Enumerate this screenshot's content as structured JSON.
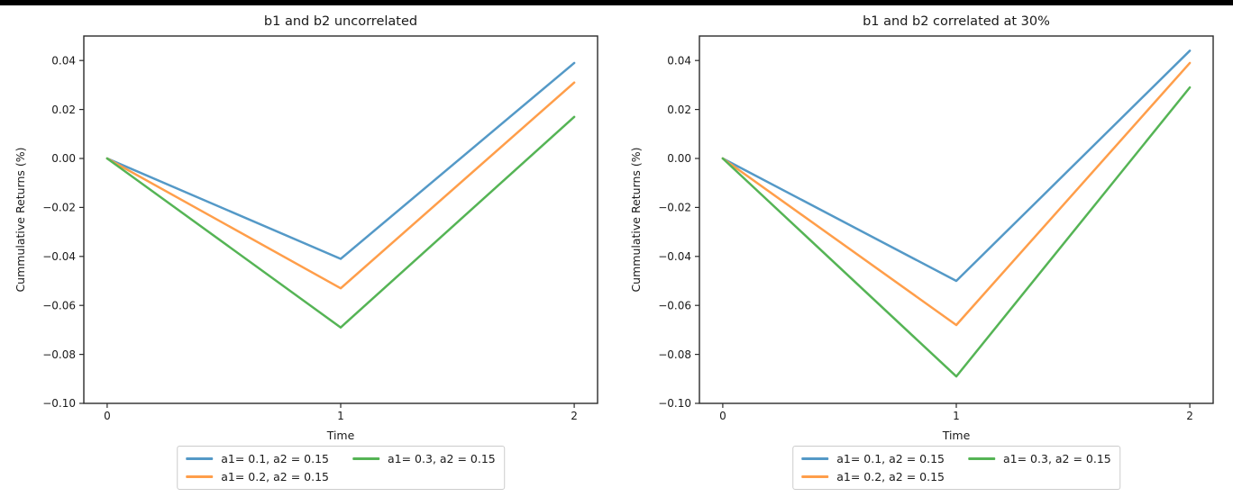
{
  "window": {
    "background": "#ffffff",
    "top_edge_color": "#000000"
  },
  "style": {
    "axis_color": "#2b2b2b",
    "text_color": "#1a1a1a",
    "legend_border_color": "#cccccc"
  },
  "chart_data": [
    {
      "type": "line",
      "title": "b1 and b2 uncorrelated",
      "xlabel": "Time",
      "ylabel": "Cummulative Returns (%)",
      "xlim": [
        -0.1,
        2.1
      ],
      "ylim": [
        -0.1,
        0.05
      ],
      "grid": false,
      "legend_position": "below",
      "x": [
        0,
        1,
        2
      ],
      "xticks": [
        {
          "v": 0,
          "label": "0"
        },
        {
          "v": 1,
          "label": "1"
        },
        {
          "v": 2,
          "label": "2"
        }
      ],
      "yticks": [
        {
          "v": 0.04,
          "label": "0.04"
        },
        {
          "v": 0.02,
          "label": "0.02"
        },
        {
          "v": 0.0,
          "label": "0.00"
        },
        {
          "v": -0.02,
          "label": "−0.02"
        },
        {
          "v": -0.04,
          "label": "−0.04"
        },
        {
          "v": -0.06,
          "label": "−0.06"
        },
        {
          "v": -0.08,
          "label": "−0.08"
        },
        {
          "v": -0.1,
          "label": "−0.10"
        }
      ],
      "series": [
        {
          "name": "a1= 0.1, a2 = 0.15",
          "color": "#5499c7",
          "values": [
            0.0,
            -0.041,
            0.039
          ]
        },
        {
          "name": "a1= 0.2, a2 = 0.15",
          "color": "#ff9e4a",
          "values": [
            0.0,
            -0.053,
            0.031
          ]
        },
        {
          "name": "a1= 0.3, a2 = 0.15",
          "color": "#55b455",
          "values": [
            0.0,
            -0.069,
            0.017
          ]
        }
      ]
    },
    {
      "type": "line",
      "title": "b1 and b2 correlated at 30%",
      "xlabel": "Time",
      "ylabel": "Cummulative Returns (%)",
      "xlim": [
        -0.1,
        2.1
      ],
      "ylim": [
        -0.1,
        0.05
      ],
      "grid": false,
      "legend_position": "below",
      "x": [
        0,
        1,
        2
      ],
      "xticks": [
        {
          "v": 0,
          "label": "0"
        },
        {
          "v": 1,
          "label": "1"
        },
        {
          "v": 2,
          "label": "2"
        }
      ],
      "yticks": [
        {
          "v": 0.04,
          "label": "0.04"
        },
        {
          "v": 0.02,
          "label": "0.02"
        },
        {
          "v": 0.0,
          "label": "0.00"
        },
        {
          "v": -0.02,
          "label": "−0.02"
        },
        {
          "v": -0.04,
          "label": "−0.04"
        },
        {
          "v": -0.06,
          "label": "−0.06"
        },
        {
          "v": -0.08,
          "label": "−0.08"
        },
        {
          "v": -0.1,
          "label": "−0.10"
        }
      ],
      "series": [
        {
          "name": "a1= 0.1, a2 = 0.15",
          "color": "#5499c7",
          "values": [
            0.0,
            -0.05,
            0.044
          ]
        },
        {
          "name": "a1= 0.2, a2 = 0.15",
          "color": "#ff9e4a",
          "values": [
            0.0,
            -0.068,
            0.039
          ]
        },
        {
          "name": "a1= 0.3, a2 = 0.15",
          "color": "#55b455",
          "values": [
            0.0,
            -0.089,
            0.029
          ]
        }
      ]
    }
  ]
}
